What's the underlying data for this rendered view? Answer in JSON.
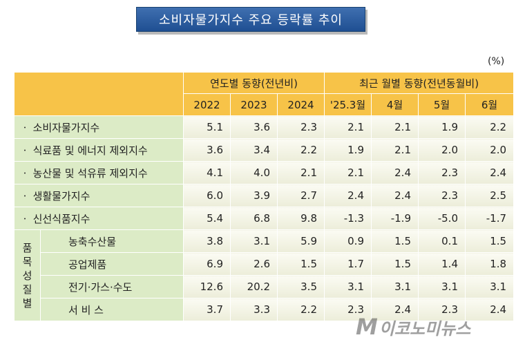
{
  "title": "소비자물가지수 주요 등락률 추이",
  "unit": "(%)",
  "header": {
    "group_annual": "연도별 동향(전년비)",
    "group_monthly": "최근 월별 동향(전년동월비)",
    "columns": [
      "2022",
      "2023",
      "2024",
      "'25.3월",
      "4월",
      "5월",
      "6월"
    ]
  },
  "rows": [
    {
      "label": "ㆍ 소비자물가지수",
      "values": [
        "5.1",
        "3.6",
        "2.3",
        "2.1",
        "2.1",
        "1.9",
        "2.2"
      ]
    },
    {
      "label": "ㆍ 식료품 및 에너지 제외지수",
      "values": [
        "3.6",
        "3.4",
        "2.2",
        "1.9",
        "2.1",
        "2.0",
        "2.0"
      ]
    },
    {
      "label": "ㆍ 농산물 및 석유류 제외지수",
      "values": [
        "4.1",
        "4.0",
        "2.1",
        "2.1",
        "2.4",
        "2.3",
        "2.4"
      ]
    },
    {
      "label": "ㆍ 생활물가지수",
      "values": [
        "6.0",
        "3.9",
        "2.7",
        "2.4",
        "2.4",
        "2.3",
        "2.5"
      ]
    },
    {
      "label": "ㆍ 신선식품지수",
      "values": [
        "5.4",
        "6.8",
        "9.8",
        "-1.3",
        "-1.9",
        "-5.0",
        "-1.7"
      ]
    }
  ],
  "group_label": "품목성질별",
  "group_label_chars": [
    "품",
    "목",
    "성",
    "질",
    "별"
  ],
  "group_rows": [
    {
      "label": "농축수산물",
      "values": [
        "3.8",
        "3.1",
        "5.9",
        "0.9",
        "1.5",
        "0.1",
        "1.5"
      ]
    },
    {
      "label": "공업제품",
      "values": [
        "6.9",
        "2.6",
        "1.5",
        "1.7",
        "1.5",
        "1.4",
        "1.8"
      ]
    },
    {
      "label": "전기·가스·수도",
      "values": [
        "12.6",
        "20.2",
        "3.5",
        "3.1",
        "3.1",
        "3.1",
        "3.1"
      ]
    },
    {
      "label": "서 비 스",
      "values": [
        "3.7",
        "3.3",
        "2.2",
        "2.3",
        "2.4",
        "2.3",
        "2.4"
      ]
    }
  ],
  "watermark": {
    "logo_letter": "M",
    "text": "이코노미뉴스"
  }
}
